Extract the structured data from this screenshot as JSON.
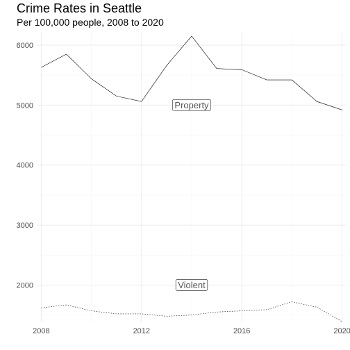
{
  "chart_data": {
    "type": "line",
    "title": "Crime Rates in Seattle",
    "subtitle": "Per 100,000 people, 2008 to 2020",
    "xlabel": "",
    "ylabel": "",
    "xlim": [
      2007.85,
      2020.15
    ],
    "ylim": [
      1380,
      6220
    ],
    "x_ticks": [
      2008,
      2012,
      2016,
      2020
    ],
    "y_ticks": [
      2000,
      3000,
      4000,
      5000,
      6000
    ],
    "grid": true,
    "legend": "none",
    "x": [
      2008,
      2009,
      2010,
      2011,
      2012,
      2013,
      2014,
      2015,
      2016,
      2017,
      2018,
      2019,
      2020
    ],
    "series": [
      {
        "name": "Property",
        "line_style": "solid",
        "label_at": [
          2014,
          5000
        ],
        "values": [
          5630,
          5850,
          5440,
          5150,
          5060,
          5660,
          6150,
          5610,
          5590,
          5420,
          5420,
          5060,
          4920
        ]
      },
      {
        "name": "Violent",
        "line_style": "dotted",
        "label_at": [
          2014,
          2000
        ],
        "values": [
          1620,
          1670,
          1570,
          1520,
          1520,
          1480,
          1500,
          1550,
          1570,
          1590,
          1720,
          1630,
          1390
        ]
      }
    ]
  }
}
